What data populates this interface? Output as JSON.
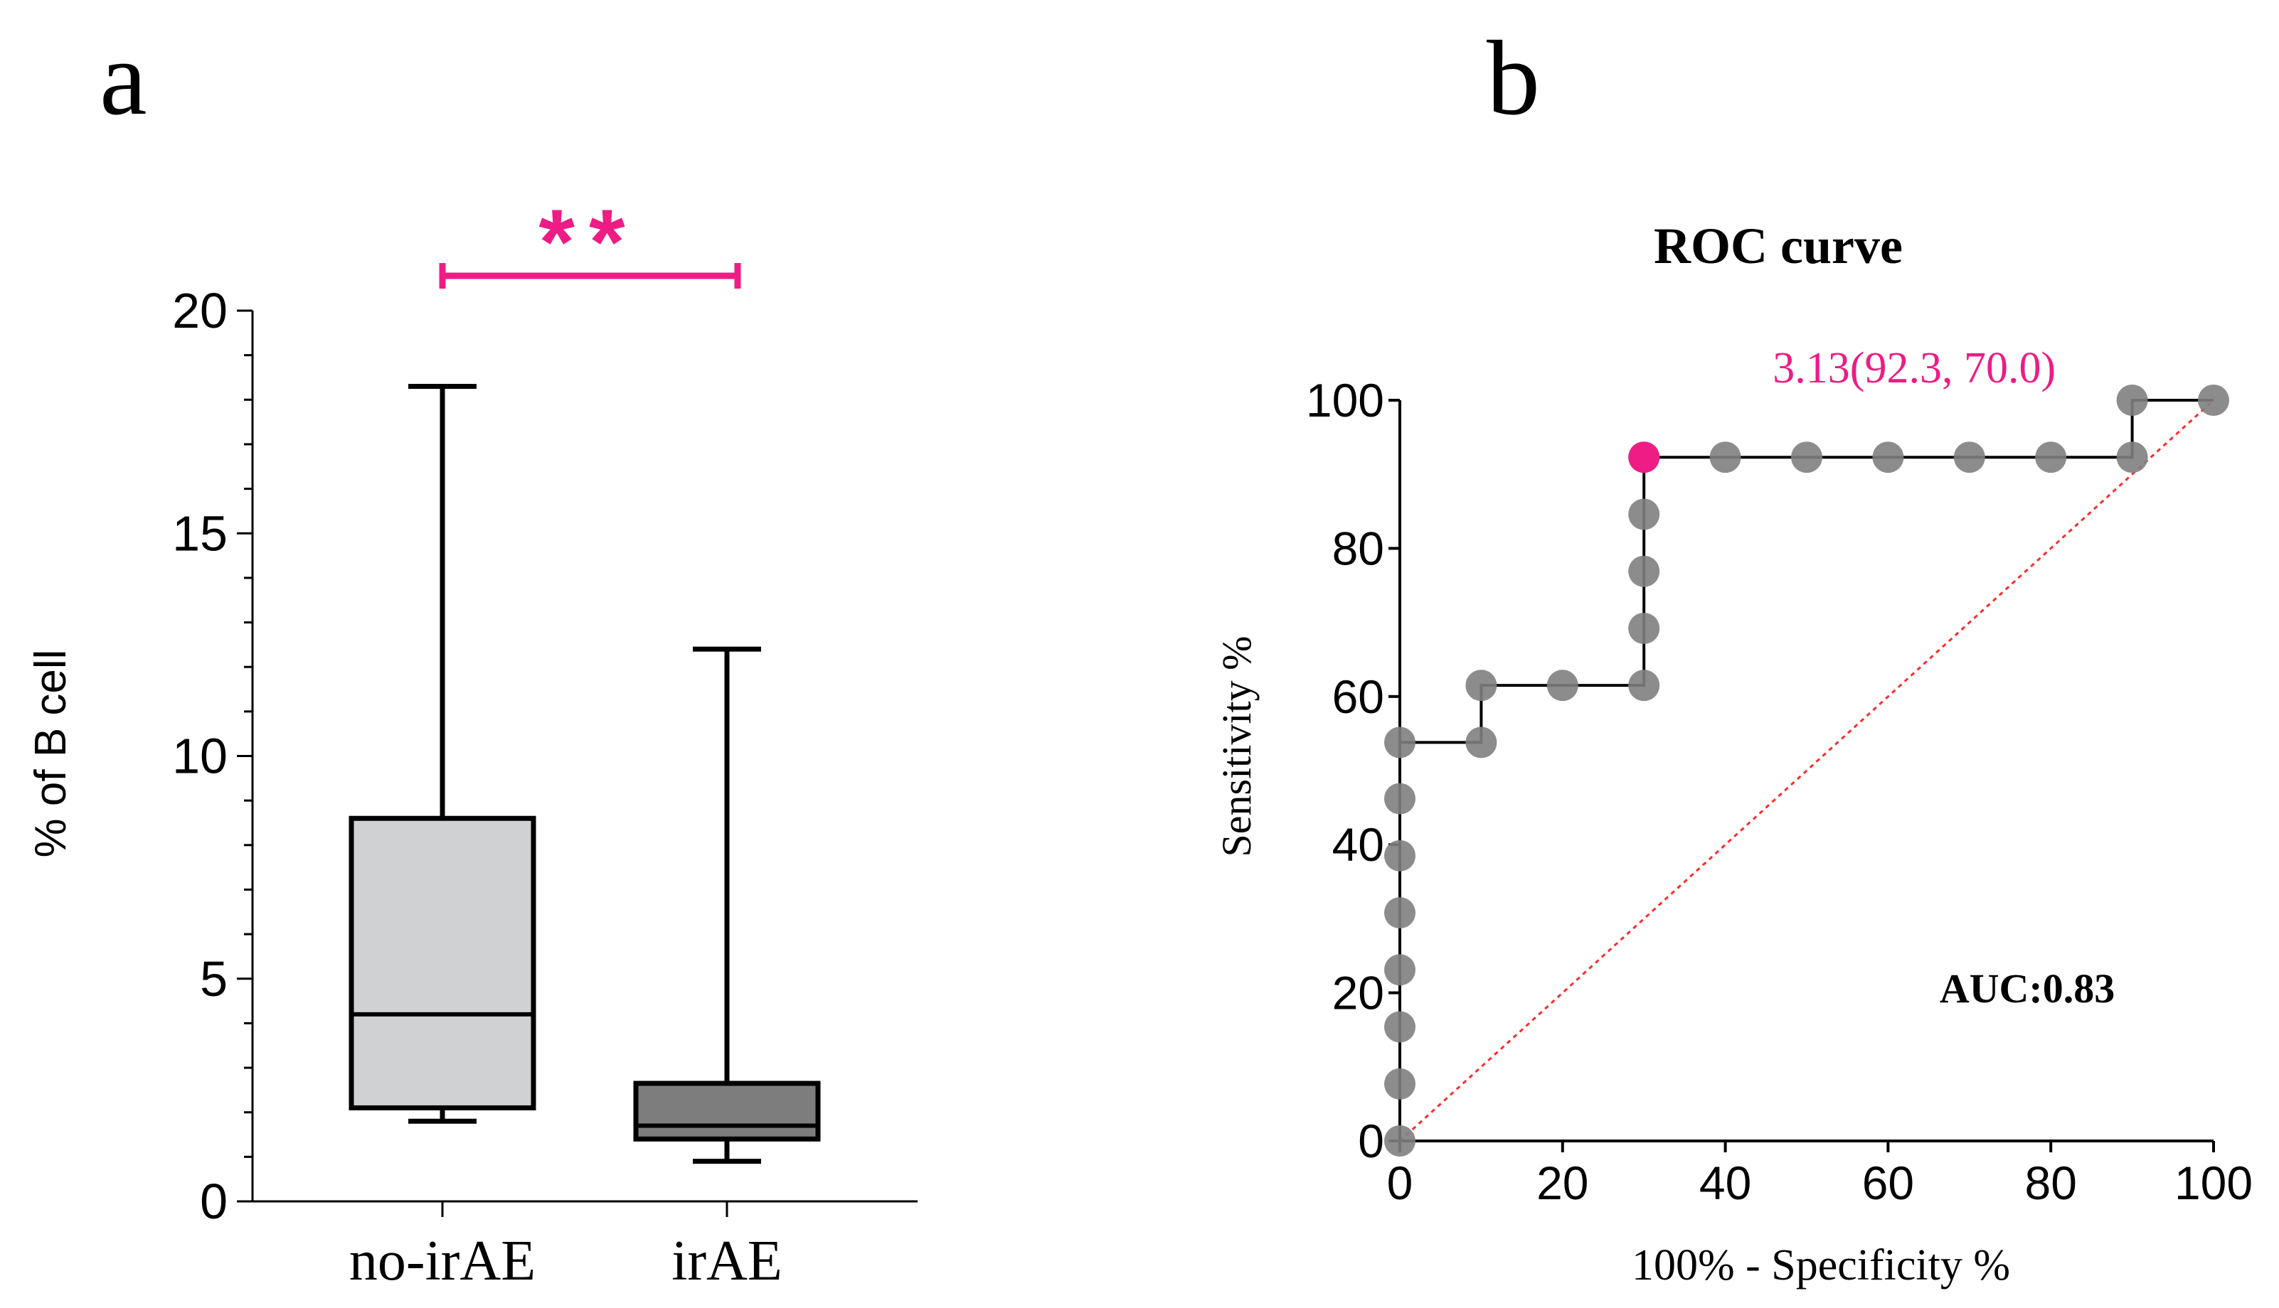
{
  "chart_data": [
    {
      "panel": "a",
      "type": "box",
      "ylabel": "% of B cell",
      "yticks": [
        0,
        5,
        10,
        15,
        20
      ],
      "ylim": [
        0,
        20
      ],
      "categories": [
        "no-irAE",
        "irAE"
      ],
      "boxes": [
        {
          "name": "no-irAE",
          "min": 1.8,
          "q1": 2.1,
          "median": 4.2,
          "q3": 8.6,
          "max": 18.3,
          "color": "#d0d1d3"
        },
        {
          "name": "irAE",
          "min": 0.9,
          "q1": 1.4,
          "median": 1.7,
          "q3": 2.65,
          "max": 12.4,
          "color": "#7d7d7d"
        }
      ],
      "significance": {
        "label": "**",
        "color": "#ee1c84"
      }
    },
    {
      "panel": "b",
      "type": "line",
      "title": "ROC curve",
      "xlabel": "100% - Specificity %",
      "ylabel": "Sensitivity %",
      "xlim": [
        0,
        100
      ],
      "ylim": [
        0,
        100
      ],
      "xticks": [
        0,
        20,
        40,
        60,
        80,
        100
      ],
      "yticks": [
        0,
        20,
        40,
        60,
        80,
        100
      ],
      "series": [
        {
          "points": [
            [
              0,
              0
            ],
            [
              0,
              7.7
            ],
            [
              0,
              15.4
            ],
            [
              0,
              23.1
            ],
            [
              0,
              30.8
            ],
            [
              0,
              38.5
            ],
            [
              0,
              46.2
            ],
            [
              0,
              53.8
            ],
            [
              10,
              53.8
            ],
            [
              10,
              61.5
            ],
            [
              20,
              61.5
            ],
            [
              30,
              61.5
            ],
            [
              30,
              69.2
            ],
            [
              30,
              76.9
            ],
            [
              30,
              84.6
            ],
            [
              30,
              92.3
            ],
            [
              40,
              92.3
            ],
            [
              50,
              92.3
            ],
            [
              60,
              92.3
            ],
            [
              70,
              92.3
            ],
            [
              80,
              92.3
            ],
            [
              90,
              92.3
            ],
            [
              90,
              100
            ],
            [
              100,
              100
            ]
          ],
          "color": "#7f7f7f"
        }
      ],
      "reference_line": {
        "from": [
          0,
          0
        ],
        "to": [
          100,
          100
        ],
        "color": "#ff2a2a"
      },
      "highlight": {
        "x": 30,
        "y": 92.3,
        "label": "3.13(92.3, 70.0)",
        "color": "#ee1c84"
      },
      "annotation": "AUC:0.83"
    }
  ],
  "panel_labels": {
    "a": "a",
    "b": "b"
  }
}
